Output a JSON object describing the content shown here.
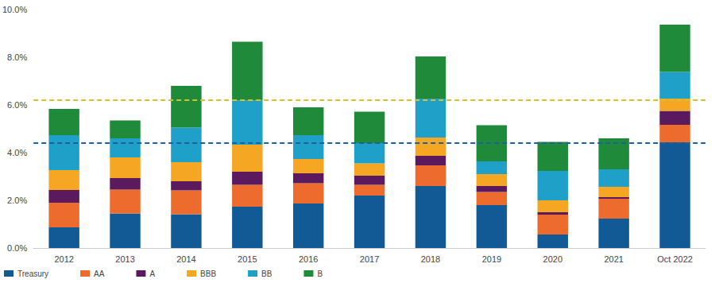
{
  "chart_data": {
    "type": "bar",
    "stacked": true,
    "grid": false,
    "legend": "bottom-left",
    "categories": [
      "2012",
      "2013",
      "2014",
      "2015",
      "2016",
      "2017",
      "2018",
      "2019",
      "2020",
      "2021",
      "Oct 2022"
    ],
    "series": [
      {
        "name": "Treasury",
        "color": "#125a96",
        "values": [
          0.87,
          1.45,
          1.42,
          1.73,
          1.87,
          2.2,
          2.6,
          1.8,
          0.57,
          1.23,
          4.43
        ]
      },
      {
        "name": "AA",
        "color": "#ee6b2e",
        "values": [
          1.03,
          1.0,
          1.0,
          0.92,
          0.85,
          0.45,
          0.87,
          0.55,
          0.83,
          0.84,
          0.74
        ]
      },
      {
        "name": "A",
        "color": "#5c1a5e",
        "values": [
          0.53,
          0.48,
          0.38,
          0.55,
          0.41,
          0.38,
          0.4,
          0.25,
          0.1,
          0.06,
          0.58
        ]
      },
      {
        "name": "BBB",
        "color": "#f5a623",
        "values": [
          0.84,
          0.87,
          0.8,
          1.13,
          0.6,
          0.52,
          0.76,
          0.5,
          0.5,
          0.44,
          0.52
        ]
      },
      {
        "name": "BB",
        "color": "#1ea0c8",
        "values": [
          1.46,
          0.8,
          1.45,
          1.85,
          1.0,
          0.85,
          1.64,
          0.53,
          1.23,
          0.73,
          1.11
        ]
      },
      {
        "name": "B",
        "color": "#1e8a3a",
        "values": [
          1.1,
          0.75,
          1.75,
          2.47,
          1.17,
          1.32,
          1.76,
          1.52,
          1.22,
          1.3,
          1.99
        ]
      }
    ],
    "reference_lines": [
      {
        "value": 6.2,
        "color": "#d4c12c",
        "line_style": "dashed"
      },
      {
        "value": 4.4,
        "color": "#1f5fa0",
        "line_style": "dashed"
      }
    ],
    "ylim": [
      0,
      10
    ],
    "yticks": [
      {
        "value": 0,
        "label": "0.0%"
      },
      {
        "value": 2,
        "label": "2.0%"
      },
      {
        "value": 4,
        "label": "4.0%"
      },
      {
        "value": 6,
        "label": "6.0%"
      },
      {
        "value": 8,
        "label": "8.0%"
      },
      {
        "value": 10,
        "label": "10.0%"
      }
    ]
  }
}
